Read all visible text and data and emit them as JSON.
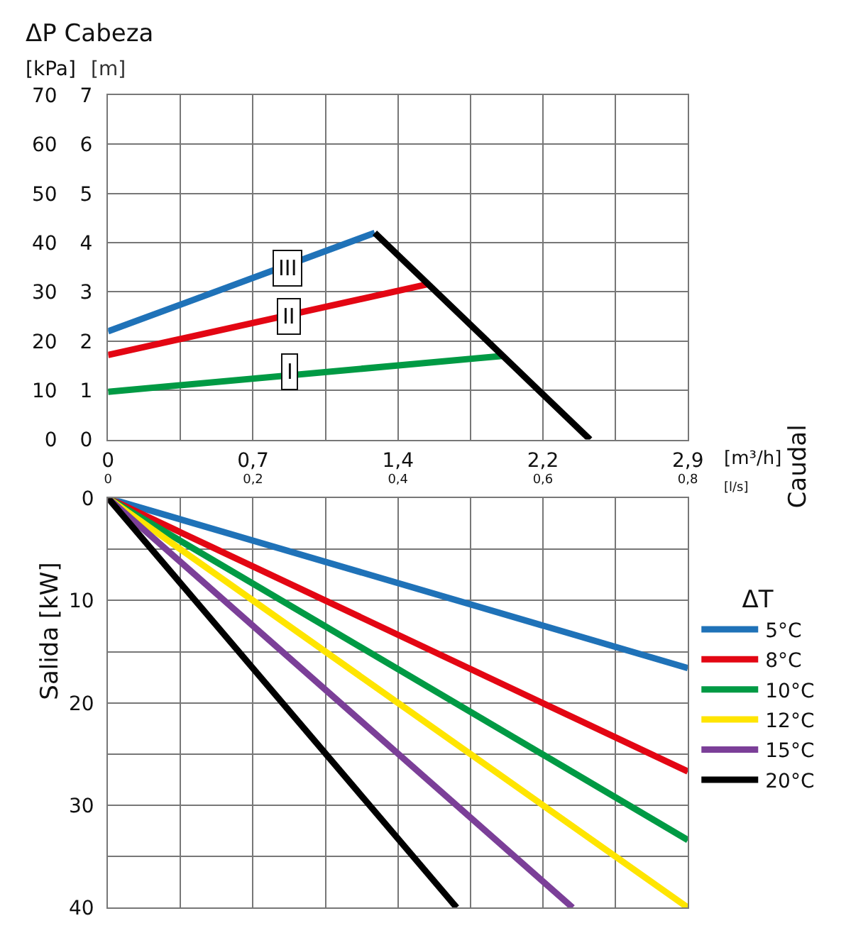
{
  "chart_data": [
    {
      "type": "line",
      "title": "ΔP Cabeza",
      "ylabel": "[kPa]",
      "y2label": "[m]",
      "xlabel": "[l/s]",
      "x2label": "[m³/h]",
      "xlim": [
        0,
        0.8
      ],
      "xticks": [
        0,
        {
          "value": 0.1,
          "label": null
        },
        {
          "value": 0.2,
          "label": "0,2"
        },
        {
          "value": 0.3,
          "label": null
        },
        {
          "value": 0.4,
          "label": "0,4"
        },
        {
          "value": 0.5,
          "label": null
        },
        {
          "value": 0.6,
          "label": "0,6"
        },
        {
          "value": 0.7,
          "label": null
        },
        {
          "value": 0.8,
          "label": "0,8"
        }
      ],
      "x2lim": [
        0,
        2.88
      ],
      "x2ticks": [
        0,
        {
          "value": 0.72,
          "label": "0,7"
        },
        {
          "value": 1.44,
          "label": "1,4"
        },
        {
          "value": 2.16,
          "label": "2,2"
        },
        {
          "value": 2.88,
          "label": "2,9"
        }
      ],
      "ylim": [
        0,
        70
      ],
      "yticks": [
        0,
        10,
        20,
        30,
        40,
        50,
        60,
        70
      ],
      "y2lim": [
        0,
        7
      ],
      "y2ticks": [
        0,
        1,
        2,
        3,
        4,
        5,
        6,
        7
      ],
      "grid": true,
      "legend": false,
      "series": [
        {
          "color": "#1f72b8",
          "x": [
            0,
            0.368
          ],
          "values": [
            22,
            42
          ]
        },
        {
          "color": "#e30613",
          "x": [
            0,
            0.442
          ],
          "values": [
            17.2,
            31.6
          ]
        },
        {
          "color": "#009a44",
          "x": [
            0,
            0.544
          ],
          "values": [
            9.7,
            17
          ]
        },
        {
          "color": "#000000",
          "x": [
            0.368,
            0.665
          ],
          "values": [
            42,
            0
          ]
        }
      ],
      "annotations": [
        {
          "text": "III",
          "x": 0.248,
          "y": 34.8
        },
        {
          "text": "II",
          "x": 0.249,
          "y": 25
        },
        {
          "text": "I",
          "x": 0.251,
          "y": 13.7
        },
        "Caudal"
      ]
    },
    {
      "type": "line",
      "ylabel": "Salida [kW]",
      "legend_title": "ΔT",
      "legend": "right",
      "tick_labels": "y",
      "grid": true,
      "xlim": [
        0,
        0.8
      ],
      "xticks": [
        0,
        0.1,
        0.2,
        0.3,
        0.4,
        0.5,
        0.6,
        0.7,
        0.8
      ],
      "ylim": [
        40,
        0
      ],
      "yticks": [
        0,
        {
          "value": 5,
          "label": null
        },
        10,
        {
          "value": 15,
          "label": null
        },
        20,
        {
          "value": 25,
          "label": null
        },
        30,
        {
          "value": 35,
          "label": null
        },
        40
      ],
      "series": [
        {
          "name": "5°C",
          "color": "#1f72b8",
          "x": [
            0,
            0.8
          ],
          "values": [
            0,
            16.6
          ]
        },
        {
          "name": "8°C",
          "color": "#e30613",
          "x": [
            0,
            0.8
          ],
          "values": [
            0,
            26.7
          ]
        },
        {
          "name": "10°C",
          "color": "#009a44",
          "x": [
            0,
            0.8
          ],
          "values": [
            0,
            33.4
          ]
        },
        {
          "name": "12°C",
          "color": "#ffe500",
          "x": [
            0,
            0.8
          ],
          "values": [
            0,
            40
          ]
        },
        {
          "name": "15°C",
          "color": "#7b3f98",
          "x": [
            0,
            0.641
          ],
          "values": [
            0,
            40
          ]
        },
        {
          "name": "20°C",
          "color": "#000000",
          "x": [
            0,
            0.481
          ],
          "values": [
            0,
            40
          ]
        }
      ]
    }
  ]
}
